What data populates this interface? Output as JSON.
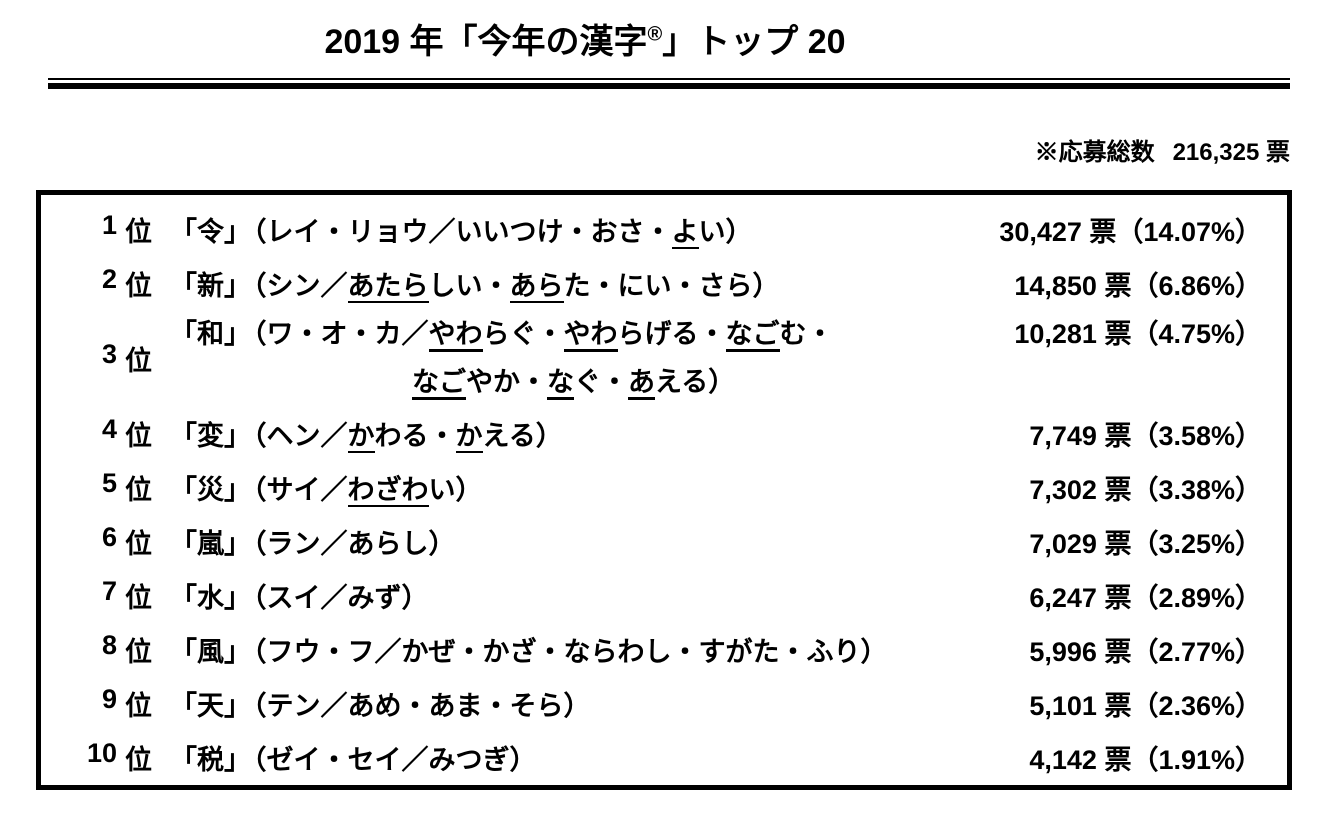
{
  "title": {
    "pre": "2019 年「今年の漢字",
    "reg_mark": "®",
    "post": "」トップ 20"
  },
  "note": {
    "label": "※応募総数",
    "value": "216,325 票"
  },
  "ranking": {
    "rank_suffix": "位",
    "rows": [
      {
        "rank": "1",
        "kanji_display": "「令」",
        "reading_lines": [
          [
            {
              "t": "（レイ・リョウ／いいつけ・おさ・"
            },
            {
              "t": "よ",
              "u": true
            },
            {
              "t": "い）"
            }
          ]
        ],
        "votes": "30,427 票（14.07%）"
      },
      {
        "rank": "2",
        "kanji_display": "「新」",
        "reading_lines": [
          [
            {
              "t": "（シン／"
            },
            {
              "t": "あたら",
              "u": true
            },
            {
              "t": "しい・"
            },
            {
              "t": "あら",
              "u": true
            },
            {
              "t": "た・にい・さら）"
            }
          ]
        ],
        "votes": "14,850 票（6.86%）"
      },
      {
        "rank": "3",
        "kanji_display": "「和」",
        "reading_lines": [
          [
            {
              "t": "（ワ・オ・カ／"
            },
            {
              "t": "やわ",
              "u": true
            },
            {
              "t": "らぐ・"
            },
            {
              "t": "やわ",
              "u": true
            },
            {
              "t": "らげる・"
            },
            {
              "t": "なご",
              "u": true
            },
            {
              "t": "む・"
            }
          ],
          [
            {
              "t": "なご",
              "u": true
            },
            {
              "t": "やか・"
            },
            {
              "t": "な",
              "u": true
            },
            {
              "t": "ぐ・"
            },
            {
              "t": "あ",
              "u": true
            },
            {
              "t": "える）"
            }
          ]
        ],
        "votes": "10,281 票（4.75%）"
      },
      {
        "rank": "4",
        "kanji_display": "「変」",
        "reading_lines": [
          [
            {
              "t": "（ヘン／"
            },
            {
              "t": "か",
              "u": true
            },
            {
              "t": "わる・"
            },
            {
              "t": "か",
              "u": true
            },
            {
              "t": "える）"
            }
          ]
        ],
        "votes": "7,749 票（3.58%）"
      },
      {
        "rank": "5",
        "kanji_display": "「災」",
        "reading_lines": [
          [
            {
              "t": "（サイ／"
            },
            {
              "t": "わざわ",
              "u": true
            },
            {
              "t": "い）"
            }
          ]
        ],
        "votes": "7,302 票（3.38%）"
      },
      {
        "rank": "6",
        "kanji_display": "「嵐」",
        "reading_lines": [
          [
            {
              "t": "（ラン／あらし）"
            }
          ]
        ],
        "votes": "7,029 票（3.25%）"
      },
      {
        "rank": "7",
        "kanji_display": "「水」",
        "reading_lines": [
          [
            {
              "t": "（スイ／みず）"
            }
          ]
        ],
        "votes": "6,247 票（2.89%）"
      },
      {
        "rank": "8",
        "kanji_display": "「風」",
        "reading_lines": [
          [
            {
              "t": "（フウ・フ／かぜ・かざ・ならわし・すがた・ふり）"
            }
          ]
        ],
        "votes": "5,996 票（2.77%）"
      },
      {
        "rank": "9",
        "kanji_display": "「天」",
        "reading_lines": [
          [
            {
              "t": "（テン／あめ・あま・そら）"
            }
          ]
        ],
        "votes": "5,101 票（2.36%）"
      },
      {
        "rank": "10",
        "kanji_display": "「税」",
        "reading_lines": [
          [
            {
              "t": "（ゼイ・セイ／みつぎ）"
            }
          ]
        ],
        "votes": "4,142 票（1.91%）"
      }
    ]
  }
}
